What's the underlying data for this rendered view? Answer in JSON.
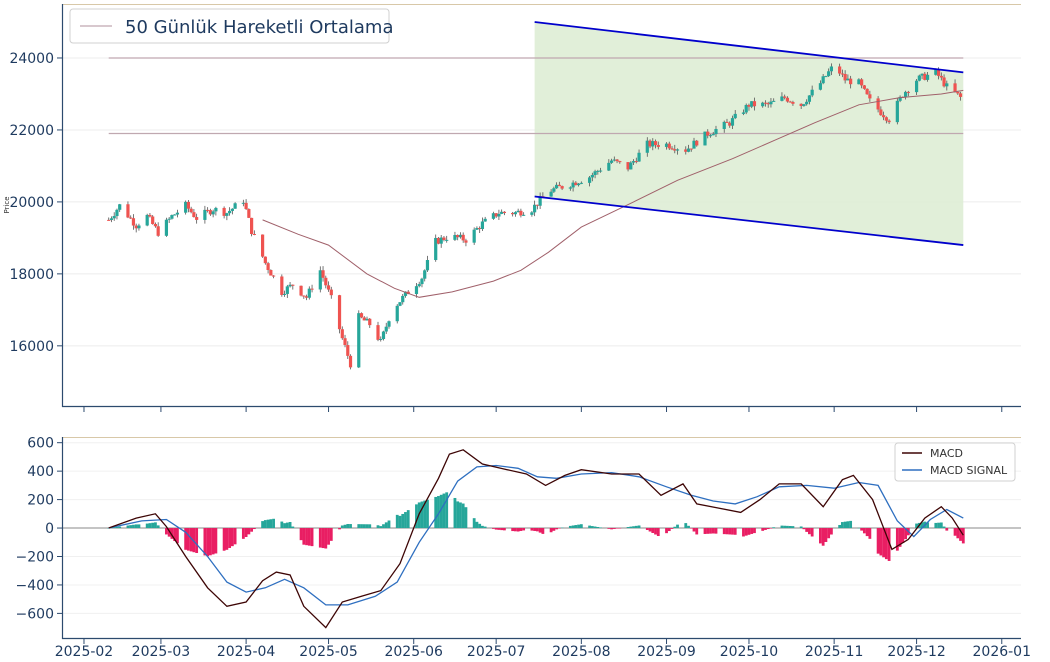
{
  "chart_data": [
    {
      "type": "candlestick",
      "ylabel": "Price",
      "ylim": [
        14300,
        25500
      ],
      "yticks": [
        16000,
        18000,
        20000,
        22000,
        24000
      ],
      "xticks": [
        "2025-02",
        "2025-03",
        "2025-04",
        "2025-05",
        "2025-06",
        "2025-07",
        "2025-08",
        "2025-09",
        "2025-10",
        "2025-11",
        "2025-12",
        "2026-01"
      ],
      "grid": true,
      "legend": {
        "placement": "top-left",
        "entries": [
          "50 Günlük Hareketli Ortalama"
        ]
      },
      "colors": {
        "up": "#26a69a",
        "down": "#ef5350",
        "ma": "#a0606a",
        "channel": "#0000cc",
        "channel_fill": "#dcecd2",
        "hline": "#c0a8b0"
      },
      "horizontal_lines": [
        24000,
        21900
      ],
      "channel": {
        "start": "2025-07-15",
        "end": "2025-12-18",
        "upper": [
          25000,
          23600
        ],
        "lower": [
          20150,
          18800
        ]
      },
      "price_path": [
        [
          "2025-02-10",
          19500
        ],
        [
          "2025-02-14",
          19900
        ],
        [
          "2025-02-20",
          19350
        ],
        [
          "2025-02-24",
          19600
        ],
        [
          "2025-02-28",
          19150
        ],
        [
          "2025-03-05",
          19600
        ],
        [
          "2025-03-10",
          19900
        ],
        [
          "2025-03-14",
          19550
        ],
        [
          "2025-03-20",
          19800
        ],
        [
          "2025-03-25",
          19700
        ],
        [
          "2025-03-31",
          20050
        ],
        [
          "2025-04-03",
          19200
        ],
        [
          "2025-04-08",
          18300
        ],
        [
          "2025-04-14",
          17500
        ],
        [
          "2025-04-18",
          17700
        ],
        [
          "2025-04-23",
          17350
        ],
        [
          "2025-04-28",
          18100
        ],
        [
          "2025-05-02",
          17300
        ],
        [
          "2025-05-06",
          16200
        ],
        [
          "2025-05-09",
          15500
        ],
        [
          "2025-05-12",
          16800
        ],
        [
          "2025-05-16",
          16600
        ],
        [
          "2025-05-20",
          16100
        ],
        [
          "2025-05-24",
          17000
        ],
        [
          "2025-05-30",
          17500
        ],
        [
          "2025-06-04",
          17900
        ],
        [
          "2025-06-09",
          18900
        ],
        [
          "2025-06-14",
          19050
        ],
        [
          "2025-06-20",
          18950
        ],
        [
          "2025-06-26",
          19400
        ],
        [
          "2025-07-02",
          19700
        ],
        [
          "2025-07-08",
          19700
        ],
        [
          "2025-07-14",
          19800
        ],
        [
          "2025-07-20",
          20300
        ],
        [
          "2025-07-28",
          20500
        ],
        [
          "2025-08-04",
          20700
        ],
        [
          "2025-08-12",
          21150
        ],
        [
          "2025-08-18",
          20950
        ],
        [
          "2025-08-25",
          21600
        ],
        [
          "2025-09-01",
          21600
        ],
        [
          "2025-09-08",
          21450
        ],
        [
          "2025-09-16",
          21900
        ],
        [
          "2025-09-24",
          22200
        ],
        [
          "2025-10-01",
          22700
        ],
        [
          "2025-10-08",
          22700
        ],
        [
          "2025-10-14",
          22900
        ],
        [
          "2025-10-20",
          22700
        ],
        [
          "2025-10-27",
          23300
        ],
        [
          "2025-11-01",
          23800
        ],
        [
          "2025-11-05",
          23400
        ],
        [
          "2025-11-10",
          23300
        ],
        [
          "2025-11-14",
          22800
        ],
        [
          "2025-11-18",
          22500
        ],
        [
          "2025-11-21",
          22300
        ],
        [
          "2025-11-26",
          23000
        ],
        [
          "2025-12-01",
          23400
        ],
        [
          "2025-12-08",
          23600
        ],
        [
          "2025-12-12",
          23200
        ],
        [
          "2025-12-17",
          22900
        ]
      ],
      "ma50_path": [
        [
          "2025-04-07",
          19500
        ],
        [
          "2025-04-20",
          19100
        ],
        [
          "2025-05-01",
          18800
        ],
        [
          "2025-05-15",
          18000
        ],
        [
          "2025-05-25",
          17600
        ],
        [
          "2025-06-03",
          17350
        ],
        [
          "2025-06-15",
          17500
        ],
        [
          "2025-06-30",
          17800
        ],
        [
          "2025-07-10",
          18100
        ],
        [
          "2025-07-20",
          18600
        ],
        [
          "2025-08-01",
          19300
        ],
        [
          "2025-08-20",
          20000
        ],
        [
          "2025-09-05",
          20600
        ],
        [
          "2025-09-25",
          21200
        ],
        [
          "2025-10-10",
          21700
        ],
        [
          "2025-10-25",
          22200
        ],
        [
          "2025-11-10",
          22700
        ],
        [
          "2025-11-25",
          22900
        ],
        [
          "2025-12-10",
          23000
        ],
        [
          "2025-12-18",
          23100
        ]
      ]
    },
    {
      "type": "macd",
      "ylim": [
        -780,
        640
      ],
      "yticks": [
        -600,
        -400,
        -200,
        0,
        200,
        400,
        600
      ],
      "legend": {
        "placement": "top-right",
        "entries": [
          "MACD",
          "MACD SIGNAL"
        ]
      },
      "colors": {
        "macd": "#3d0505",
        "signal": "#2e6fc0",
        "hist_pos": "#26a69a",
        "hist_neg": "#e91e63"
      },
      "macd": [
        [
          "2025-02-10",
          0
        ],
        [
          "2025-02-20",
          70
        ],
        [
          "2025-02-27",
          100
        ],
        [
          "2025-03-03",
          10
        ],
        [
          "2025-03-10",
          -200
        ],
        [
          "2025-03-18",
          -420
        ],
        [
          "2025-03-25",
          -550
        ],
        [
          "2025-04-01",
          -520
        ],
        [
          "2025-04-07",
          -370
        ],
        [
          "2025-04-12",
          -310
        ],
        [
          "2025-04-17",
          -330
        ],
        [
          "2025-04-22",
          -550
        ],
        [
          "2025-04-30",
          -700
        ],
        [
          "2025-05-06",
          -520
        ],
        [
          "2025-05-13",
          -480
        ],
        [
          "2025-05-20",
          -440
        ],
        [
          "2025-05-27",
          -250
        ],
        [
          "2025-06-03",
          100
        ],
        [
          "2025-06-10",
          350
        ],
        [
          "2025-06-14",
          520
        ],
        [
          "2025-06-19",
          550
        ],
        [
          "2025-06-26",
          450
        ],
        [
          "2025-07-05",
          410
        ],
        [
          "2025-07-12",
          380
        ],
        [
          "2025-07-19",
          300
        ],
        [
          "2025-07-26",
          370
        ],
        [
          "2025-08-01",
          410
        ],
        [
          "2025-08-12",
          380
        ],
        [
          "2025-08-22",
          380
        ],
        [
          "2025-08-30",
          230
        ],
        [
          "2025-09-07",
          310
        ],
        [
          "2025-09-12",
          170
        ],
        [
          "2025-09-20",
          140
        ],
        [
          "2025-09-28",
          110
        ],
        [
          "2025-10-05",
          200
        ],
        [
          "2025-10-12",
          310
        ],
        [
          "2025-10-20",
          310
        ],
        [
          "2025-10-28",
          150
        ],
        [
          "2025-11-04",
          340
        ],
        [
          "2025-11-08",
          370
        ],
        [
          "2025-11-15",
          200
        ],
        [
          "2025-11-22",
          -150
        ],
        [
          "2025-11-28",
          -80
        ],
        [
          "2025-12-04",
          70
        ],
        [
          "2025-12-10",
          150
        ],
        [
          "2025-12-14",
          70
        ],
        [
          "2025-12-18",
          -50
        ]
      ],
      "signal": [
        [
          "2025-02-10",
          0
        ],
        [
          "2025-02-22",
          50
        ],
        [
          "2025-03-03",
          60
        ],
        [
          "2025-03-10",
          -30
        ],
        [
          "2025-03-18",
          -200
        ],
        [
          "2025-03-25",
          -380
        ],
        [
          "2025-04-01",
          -450
        ],
        [
          "2025-04-08",
          -420
        ],
        [
          "2025-04-15",
          -360
        ],
        [
          "2025-04-22",
          -420
        ],
        [
          "2025-04-30",
          -540
        ],
        [
          "2025-05-08",
          -540
        ],
        [
          "2025-05-18",
          -480
        ],
        [
          "2025-05-26",
          -380
        ],
        [
          "2025-06-03",
          -100
        ],
        [
          "2025-06-10",
          100
        ],
        [
          "2025-06-17",
          330
        ],
        [
          "2025-06-24",
          430
        ],
        [
          "2025-07-01",
          440
        ],
        [
          "2025-07-09",
          420
        ],
        [
          "2025-07-16",
          360
        ],
        [
          "2025-07-23",
          350
        ],
        [
          "2025-08-01",
          380
        ],
        [
          "2025-08-12",
          390
        ],
        [
          "2025-08-22",
          360
        ],
        [
          "2025-09-01",
          290
        ],
        [
          "2025-09-10",
          230
        ],
        [
          "2025-09-18",
          190
        ],
        [
          "2025-09-26",
          170
        ],
        [
          "2025-10-04",
          220
        ],
        [
          "2025-10-12",
          290
        ],
        [
          "2025-10-22",
          300
        ],
        [
          "2025-11-01",
          280
        ],
        [
          "2025-11-10",
          320
        ],
        [
          "2025-11-17",
          300
        ],
        [
          "2025-11-24",
          50
        ],
        [
          "2025-11-30",
          -60
        ],
        [
          "2025-12-06",
          60
        ],
        [
          "2025-12-12",
          130
        ],
        [
          "2025-12-18",
          70
        ]
      ]
    }
  ]
}
